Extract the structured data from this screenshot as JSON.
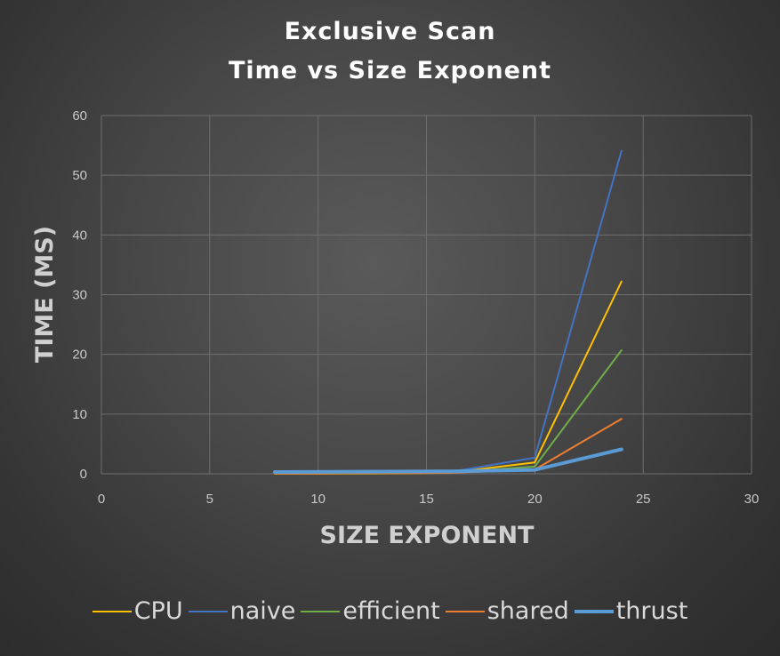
{
  "chart_data": {
    "type": "line",
    "title": "Exclusive Scan",
    "subtitle": "Time vs Size Exponent",
    "xlabel": "SIZE EXPONENT",
    "ylabel": "TIME (MS)",
    "xlim": [
      0,
      30
    ],
    "ylim": [
      0,
      60
    ],
    "xticks": [
      0,
      5,
      10,
      15,
      20,
      25,
      30
    ],
    "yticks": [
      0,
      10,
      20,
      30,
      40,
      50,
      60
    ],
    "grid": true,
    "legend_position": "bottom",
    "x": [
      8,
      12,
      16,
      20,
      24
    ],
    "series": [
      {
        "name": "CPU",
        "color": "#ffc000",
        "values": [
          0.0,
          0.05,
          0.15,
          1.9,
          32.2
        ]
      },
      {
        "name": "naive",
        "color": "#4472c4",
        "values": [
          0.05,
          0.1,
          0.25,
          2.7,
          54.1
        ]
      },
      {
        "name": "efficient",
        "color": "#70ad47",
        "values": [
          0.05,
          0.1,
          0.2,
          1.2,
          20.7
        ]
      },
      {
        "name": "shared",
        "color": "#ed7d31",
        "values": [
          0.05,
          0.1,
          0.15,
          0.7,
          9.2
        ]
      },
      {
        "name": "thrust",
        "color": "#5b9bd5",
        "values": [
          0.3,
          0.35,
          0.4,
          0.65,
          4.1
        ]
      }
    ]
  }
}
